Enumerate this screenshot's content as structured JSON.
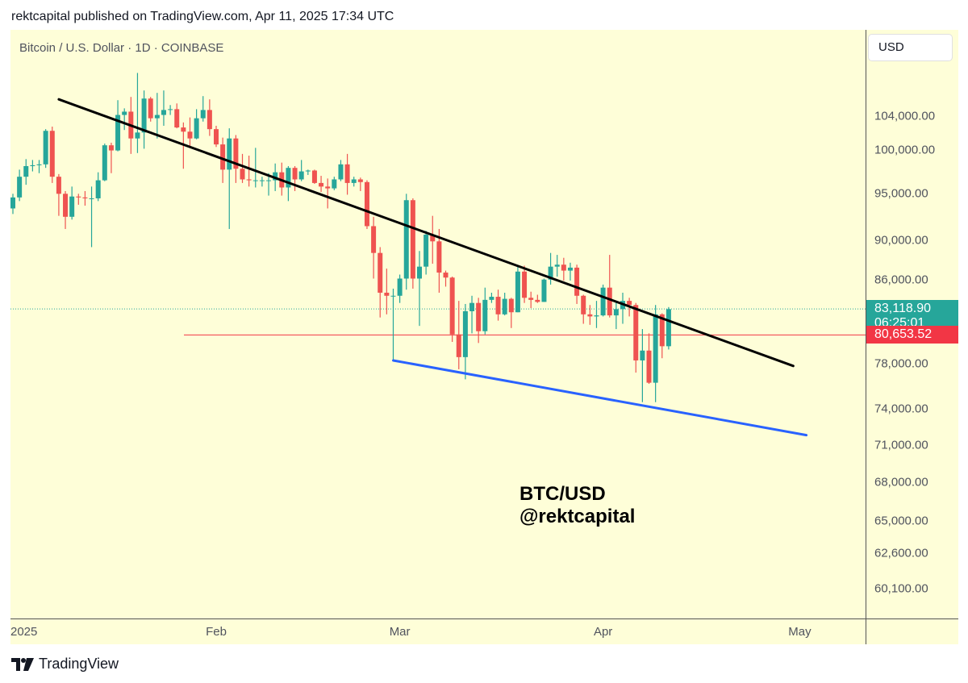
{
  "header": {
    "published_text": "rektcapital published on TradingView.com, Apr 11, 2025 17:34 UTC"
  },
  "symbol_label": "Bitcoin / U.S. Dollar · 1D · COINBASE",
  "currency_button": "USD",
  "annotation": {
    "line1": "BTC/USD",
    "line2": "@rektcapital"
  },
  "price_tags": {
    "last_price": "83,118.90",
    "countdown": "06:25:01",
    "level_price": "80,653.52"
  },
  "branding": {
    "name": "TradingView"
  },
  "colors": {
    "up": "#26a69a",
    "down": "#ef5350",
    "background": "#fefed8",
    "resistance_line": "#000000",
    "support_line": "#2962ff",
    "level_line": "#f23645",
    "last_price_tag": "#26a69a",
    "level_tag": "#f23645"
  },
  "chart_data": {
    "type": "candlestick",
    "title": "Bitcoin / U.S. Dollar · 1D · COINBASE",
    "y_scale": "log",
    "ylim": [
      58000,
      113000
    ],
    "xlim": [
      "2024-12-31",
      "2025-05-06"
    ],
    "y_ticks": [
      "104,000.00",
      "100,000.00",
      "95,000.00",
      "90,000.00",
      "86,000.00",
      "78,000.00",
      "74,000.00",
      "71,000.00",
      "68,000.00",
      "65,000.00",
      "62,600.00",
      "60,100.00"
    ],
    "y_tick_values": [
      104000,
      100000,
      95000,
      90000,
      86000,
      78000,
      74000,
      71000,
      68000,
      65000,
      62600,
      60100
    ],
    "x_ticks": [
      {
        "label": "2025",
        "date": "2025-01-01"
      },
      {
        "label": "Feb",
        "date": "2025-02-01"
      },
      {
        "label": "Mar",
        "date": "2025-03-01"
      },
      {
        "label": "Apr",
        "date": "2025-04-01"
      },
      {
        "label": "May",
        "date": "2025-05-01"
      }
    ],
    "last_price": 83118.9,
    "horizontal_level": 80653.52,
    "trendlines": [
      {
        "name": "resistance",
        "from": {
          "date": "2025-01-08",
          "price": 106000
        },
        "to": {
          "date": "2025-04-30",
          "price": 77800
        }
      },
      {
        "name": "support",
        "from": {
          "date": "2025-02-28",
          "price": 78300
        },
        "to": {
          "date": "2025-05-02",
          "price": 71800
        }
      }
    ],
    "candles": [
      {
        "date": "2025-01-01",
        "open": 93400,
        "high": 95000,
        "low": 92800,
        "close": 94600
      },
      {
        "date": "2025-01-02",
        "open": 94600,
        "high": 97700,
        "low": 94200,
        "close": 96900
      },
      {
        "date": "2025-01-03",
        "open": 96900,
        "high": 98900,
        "low": 96000,
        "close": 98100
      },
      {
        "date": "2025-01-04",
        "open": 98100,
        "high": 98800,
        "low": 97500,
        "close": 98200
      },
      {
        "date": "2025-01-05",
        "open": 98200,
        "high": 98800,
        "low": 97300,
        "close": 98300
      },
      {
        "date": "2025-01-06",
        "open": 98300,
        "high": 102400,
        "low": 97900,
        "close": 102200
      },
      {
        "date": "2025-01-07",
        "open": 102200,
        "high": 102700,
        "low": 96200,
        "close": 96900
      },
      {
        "date": "2025-01-08",
        "open": 96900,
        "high": 97200,
        "low": 92600,
        "close": 95000
      },
      {
        "date": "2025-01-09",
        "open": 95000,
        "high": 95300,
        "low": 91200,
        "close": 92500
      },
      {
        "date": "2025-01-10",
        "open": 92500,
        "high": 95800,
        "low": 92200,
        "close": 94700
      },
      {
        "date": "2025-01-11",
        "open": 94700,
        "high": 95000,
        "low": 93800,
        "close": 94600
      },
      {
        "date": "2025-01-12",
        "open": 94600,
        "high": 95300,
        "low": 93700,
        "close": 94500
      },
      {
        "date": "2025-01-13",
        "open": 94500,
        "high": 95800,
        "low": 89300,
        "close": 94500
      },
      {
        "date": "2025-01-14",
        "open": 94500,
        "high": 97400,
        "low": 94200,
        "close": 96500
      },
      {
        "date": "2025-01-15",
        "open": 96500,
        "high": 100700,
        "low": 96400,
        "close": 100500
      },
      {
        "date": "2025-01-16",
        "open": 100500,
        "high": 100800,
        "low": 97300,
        "close": 99900
      },
      {
        "date": "2025-01-17",
        "open": 99900,
        "high": 105900,
        "low": 99800,
        "close": 104100
      },
      {
        "date": "2025-01-18",
        "open": 104100,
        "high": 104900,
        "low": 102300,
        "close": 104500
      },
      {
        "date": "2025-01-19",
        "open": 104500,
        "high": 106300,
        "low": 99500,
        "close": 101300
      },
      {
        "date": "2025-01-20",
        "open": 101300,
        "high": 109300,
        "low": 99600,
        "close": 102000
      },
      {
        "date": "2025-01-21",
        "open": 102000,
        "high": 107100,
        "low": 100100,
        "close": 106100
      },
      {
        "date": "2025-01-22",
        "open": 106100,
        "high": 106300,
        "low": 103300,
        "close": 103700
      },
      {
        "date": "2025-01-23",
        "open": 103700,
        "high": 106800,
        "low": 101300,
        "close": 104100
      },
      {
        "date": "2025-01-24",
        "open": 104100,
        "high": 107100,
        "low": 102800,
        "close": 104700
      },
      {
        "date": "2025-01-25",
        "open": 104700,
        "high": 105300,
        "low": 104100,
        "close": 104800
      },
      {
        "date": "2025-01-26",
        "open": 104800,
        "high": 105500,
        "low": 102500,
        "close": 102600
      },
      {
        "date": "2025-01-27",
        "open": 102600,
        "high": 103200,
        "low": 97800,
        "close": 102100
      },
      {
        "date": "2025-01-28",
        "open": 102100,
        "high": 103800,
        "low": 100300,
        "close": 101300
      },
      {
        "date": "2025-01-29",
        "open": 101300,
        "high": 104800,
        "low": 101200,
        "close": 103700
      },
      {
        "date": "2025-01-30",
        "open": 103700,
        "high": 106400,
        "low": 103300,
        "close": 104700
      },
      {
        "date": "2025-01-31",
        "open": 104700,
        "high": 106000,
        "low": 101600,
        "close": 102400
      },
      {
        "date": "2025-02-01",
        "open": 102400,
        "high": 102800,
        "low": 100300,
        "close": 100600
      },
      {
        "date": "2025-02-02",
        "open": 100600,
        "high": 101400,
        "low": 96200,
        "close": 97700
      },
      {
        "date": "2025-02-03",
        "open": 97700,
        "high": 102500,
        "low": 91200,
        "close": 101300
      },
      {
        "date": "2025-02-04",
        "open": 101300,
        "high": 101700,
        "low": 96200,
        "close": 97800
      },
      {
        "date": "2025-02-05",
        "open": 97800,
        "high": 99500,
        "low": 96200,
        "close": 96600
      },
      {
        "date": "2025-02-06",
        "open": 96600,
        "high": 99300,
        "low": 95800,
        "close": 96500
      },
      {
        "date": "2025-02-07",
        "open": 96500,
        "high": 100200,
        "low": 95700,
        "close": 96500
      },
      {
        "date": "2025-02-08",
        "open": 96500,
        "high": 96900,
        "low": 95800,
        "close": 96500
      },
      {
        "date": "2025-02-09",
        "open": 96500,
        "high": 97300,
        "low": 94800,
        "close": 96500
      },
      {
        "date": "2025-02-10",
        "open": 96500,
        "high": 98400,
        "low": 95300,
        "close": 97400
      },
      {
        "date": "2025-02-11",
        "open": 97400,
        "high": 98500,
        "low": 94800,
        "close": 95700
      },
      {
        "date": "2025-02-12",
        "open": 95700,
        "high": 98100,
        "low": 94200,
        "close": 97900
      },
      {
        "date": "2025-02-13",
        "open": 97900,
        "high": 98100,
        "low": 95300,
        "close": 96600
      },
      {
        "date": "2025-02-14",
        "open": 96600,
        "high": 98800,
        "low": 96400,
        "close": 97500
      },
      {
        "date": "2025-02-15",
        "open": 97500,
        "high": 97700,
        "low": 97100,
        "close": 97600
      },
      {
        "date": "2025-02-16",
        "open": 97600,
        "high": 97700,
        "low": 96100,
        "close": 96200
      },
      {
        "date": "2025-02-17",
        "open": 96200,
        "high": 97000,
        "low": 95200,
        "close": 95800
      },
      {
        "date": "2025-02-18",
        "open": 95800,
        "high": 96700,
        "low": 93400,
        "close": 95600
      },
      {
        "date": "2025-02-19",
        "open": 95600,
        "high": 96900,
        "low": 95400,
        "close": 96600
      },
      {
        "date": "2025-02-20",
        "open": 96600,
        "high": 98800,
        "low": 96400,
        "close": 98300
      },
      {
        "date": "2025-02-21",
        "open": 98300,
        "high": 99500,
        "low": 94900,
        "close": 96200
      },
      {
        "date": "2025-02-22",
        "open": 96200,
        "high": 96900,
        "low": 95800,
        "close": 96600
      },
      {
        "date": "2025-02-23",
        "open": 96600,
        "high": 96800,
        "low": 95300,
        "close": 96300
      },
      {
        "date": "2025-02-24",
        "open": 96300,
        "high": 96500,
        "low": 91200,
        "close": 91500
      },
      {
        "date": "2025-02-25",
        "open": 91500,
        "high": 92500,
        "low": 86100,
        "close": 88700
      },
      {
        "date": "2025-02-26",
        "open": 88700,
        "high": 89300,
        "low": 82300,
        "close": 84700
      },
      {
        "date": "2025-02-27",
        "open": 84700,
        "high": 87100,
        "low": 82600,
        "close": 84400
      },
      {
        "date": "2025-02-28",
        "open": 84400,
        "high": 85100,
        "low": 78300,
        "close": 84400
      },
      {
        "date": "2025-03-01",
        "open": 84400,
        "high": 86500,
        "low": 83700,
        "close": 86100
      },
      {
        "date": "2025-03-02",
        "open": 86100,
        "high": 95000,
        "low": 85000,
        "close": 94300
      },
      {
        "date": "2025-03-03",
        "open": 94300,
        "high": 94500,
        "low": 85100,
        "close": 86100
      },
      {
        "date": "2025-03-04",
        "open": 86100,
        "high": 88900,
        "low": 81500,
        "close": 87300
      },
      {
        "date": "2025-03-05",
        "open": 87300,
        "high": 91000,
        "low": 86500,
        "close": 90600
      },
      {
        "date": "2025-03-06",
        "open": 90600,
        "high": 92600,
        "low": 87600,
        "close": 89900
      },
      {
        "date": "2025-03-07",
        "open": 89900,
        "high": 91200,
        "low": 84700,
        "close": 86700
      },
      {
        "date": "2025-03-08",
        "open": 86700,
        "high": 86900,
        "low": 85300,
        "close": 86200
      },
      {
        "date": "2025-03-09",
        "open": 86200,
        "high": 86300,
        "low": 80000,
        "close": 80700
      },
      {
        "date": "2025-03-10",
        "open": 80700,
        "high": 83900,
        "low": 77500,
        "close": 78600
      },
      {
        "date": "2025-03-11",
        "open": 78600,
        "high": 83600,
        "low": 76600,
        "close": 82900
      },
      {
        "date": "2025-03-12",
        "open": 82900,
        "high": 84400,
        "low": 80800,
        "close": 83700
      },
      {
        "date": "2025-03-13",
        "open": 83700,
        "high": 84200,
        "low": 79900,
        "close": 81000
      },
      {
        "date": "2025-03-14",
        "open": 81000,
        "high": 85200,
        "low": 80700,
        "close": 84000
      },
      {
        "date": "2025-03-15",
        "open": 84000,
        "high": 84700,
        "low": 83700,
        "close": 84300
      },
      {
        "date": "2025-03-16",
        "open": 84300,
        "high": 85000,
        "low": 82000,
        "close": 82600
      },
      {
        "date": "2025-03-17",
        "open": 82600,
        "high": 84700,
        "low": 82500,
        "close": 84100
      },
      {
        "date": "2025-03-18",
        "open": 84100,
        "high": 84200,
        "low": 81300,
        "close": 82800
      },
      {
        "date": "2025-03-19",
        "open": 82800,
        "high": 87400,
        "low": 82800,
        "close": 86800
      },
      {
        "date": "2025-03-20",
        "open": 86800,
        "high": 87400,
        "low": 83700,
        "close": 84200
      },
      {
        "date": "2025-03-21",
        "open": 84200,
        "high": 84800,
        "low": 83200,
        "close": 84000
      },
      {
        "date": "2025-03-22",
        "open": 84000,
        "high": 84500,
        "low": 83700,
        "close": 83800
      },
      {
        "date": "2025-03-23",
        "open": 83800,
        "high": 86100,
        "low": 83800,
        "close": 86000
      },
      {
        "date": "2025-03-24",
        "open": 86000,
        "high": 88700,
        "low": 85500,
        "close": 87300
      },
      {
        "date": "2025-03-25",
        "open": 87300,
        "high": 88500,
        "low": 86300,
        "close": 87500
      },
      {
        "date": "2025-03-26",
        "open": 87500,
        "high": 88200,
        "low": 85900,
        "close": 86900
      },
      {
        "date": "2025-03-27",
        "open": 86900,
        "high": 87700,
        "low": 85900,
        "close": 87200
      },
      {
        "date": "2025-03-28",
        "open": 87200,
        "high": 87500,
        "low": 83600,
        "close": 84400
      },
      {
        "date": "2025-03-29",
        "open": 84400,
        "high": 84500,
        "low": 81700,
        "close": 82600
      },
      {
        "date": "2025-03-30",
        "open": 82600,
        "high": 83500,
        "low": 81600,
        "close": 82400
      },
      {
        "date": "2025-03-31",
        "open": 82400,
        "high": 83900,
        "low": 81300,
        "close": 82500
      },
      {
        "date": "2025-04-01",
        "open": 82500,
        "high": 85500,
        "low": 82400,
        "close": 85200
      },
      {
        "date": "2025-04-02",
        "open": 85200,
        "high": 88500,
        "low": 82300,
        "close": 82500
      },
      {
        "date": "2025-04-03",
        "open": 82500,
        "high": 83900,
        "low": 81200,
        "close": 83100
      },
      {
        "date": "2025-04-04",
        "open": 83100,
        "high": 84700,
        "low": 81700,
        "close": 83900
      },
      {
        "date": "2025-04-05",
        "open": 83900,
        "high": 84200,
        "low": 82400,
        "close": 83500
      },
      {
        "date": "2025-04-06",
        "open": 83500,
        "high": 83700,
        "low": 77200,
        "close": 78300
      },
      {
        "date": "2025-04-07",
        "open": 78300,
        "high": 81200,
        "low": 74600,
        "close": 79200
      },
      {
        "date": "2025-04-08",
        "open": 79200,
        "high": 80800,
        "low": 76200,
        "close": 76300
      },
      {
        "date": "2025-04-09",
        "open": 76300,
        "high": 83500,
        "low": 74600,
        "close": 82600
      },
      {
        "date": "2025-04-10",
        "open": 82600,
        "high": 82700,
        "low": 78500,
        "close": 79600
      },
      {
        "date": "2025-04-11",
        "open": 79600,
        "high": 83300,
        "low": 79300,
        "close": 83100
      }
    ]
  }
}
